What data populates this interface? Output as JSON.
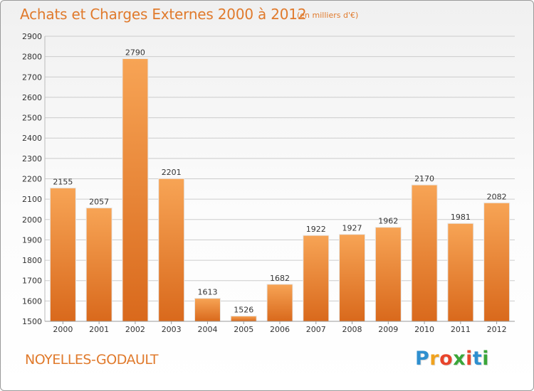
{
  "chart_data": {
    "type": "bar",
    "title": "Achats et Charges Externes 2000 à 2012",
    "subtitle": "(en milliers d'€)",
    "categories": [
      "2000",
      "2001",
      "2002",
      "2003",
      "2004",
      "2005",
      "2006",
      "2007",
      "2008",
      "2009",
      "2010",
      "2011",
      "2012"
    ],
    "values": [
      2155,
      2057,
      2790,
      2201,
      1613,
      1526,
      1682,
      1922,
      1927,
      1962,
      2170,
      1981,
      2082
    ],
    "ylim": [
      1500,
      2900
    ],
    "yticks": [
      1500,
      1600,
      1700,
      1800,
      1900,
      2000,
      2100,
      2200,
      2300,
      2400,
      2500,
      2600,
      2700,
      2800,
      2900
    ],
    "grid": true,
    "xlabel": "",
    "ylabel": "",
    "colors": {
      "bar_top": "#f7a455",
      "bar_bottom": "#d9691c",
      "title": "#e07a2c",
      "grid": "#cccccc"
    }
  },
  "location": "NOYELLES-GODAULT",
  "logo": {
    "letters": [
      "P",
      "r",
      "o",
      "x",
      "i",
      "t",
      "i"
    ],
    "colors": [
      "#2e8fcf",
      "#f0a21e",
      "#e8442b",
      "#3aa639",
      "#e8442b",
      "#2e8fcf",
      "#3aa639"
    ]
  }
}
